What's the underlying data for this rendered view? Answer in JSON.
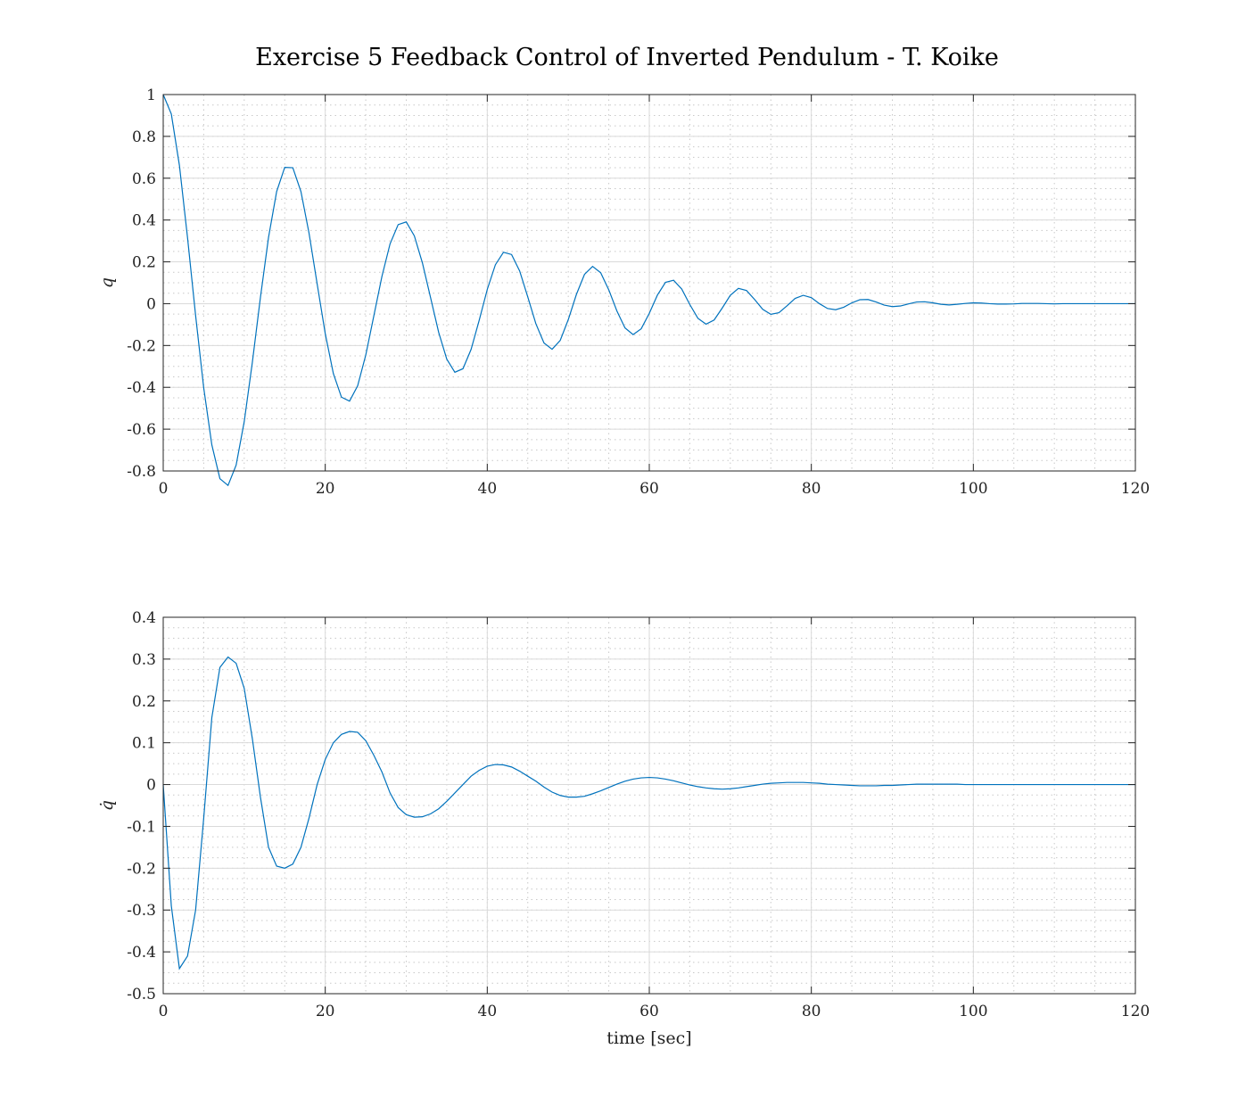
{
  "figure": {
    "title": "Exercise 5 Feedback Control of Inverted Pendulum - T. Koike"
  },
  "chart_data": [
    {
      "type": "line",
      "id": "q-plot",
      "title": "",
      "xlabel": "",
      "ylabel": "q",
      "xlim": [
        0,
        120
      ],
      "ylim": [
        -0.8,
        1
      ],
      "xticks": [
        0,
        20,
        40,
        60,
        80,
        100,
        120
      ],
      "xtick_labels": [
        "0",
        "20",
        "40",
        "60",
        "80",
        "100",
        "120"
      ],
      "yticks": [
        -0.8,
        -0.6,
        -0.4,
        -0.2,
        0,
        0.2,
        0.4,
        0.6,
        0.8,
        1
      ],
      "ytick_labels": [
        "-0.8",
        "-0.6",
        "-0.4",
        "-0.2",
        "0",
        "0.2",
        "0.4",
        "0.6",
        "0.8",
        "1"
      ],
      "grid": true,
      "minor_grid": true,
      "color": "#0072bd",
      "series": [
        {
          "x": [
            0,
            1,
            2,
            3,
            4,
            5,
            6,
            7,
            8,
            9,
            10,
            11,
            12,
            13,
            14,
            15,
            16,
            17,
            18,
            19,
            20,
            21,
            22,
            23,
            24,
            25,
            26,
            27,
            28,
            29,
            30,
            31,
            32,
            33,
            34,
            35,
            36,
            37,
            38,
            39,
            40,
            41,
            42,
            43,
            44,
            45,
            46,
            47,
            48,
            49,
            50,
            51,
            52,
            53,
            54,
            55,
            56,
            57,
            58,
            59,
            60,
            61,
            62,
            63,
            64,
            65,
            66,
            67,
            68,
            69,
            70,
            71,
            72,
            73,
            74,
            75,
            76,
            77,
            78,
            79,
            80,
            81,
            82,
            83,
            84,
            85,
            86,
            87,
            88,
            89,
            90,
            91,
            92,
            93,
            94,
            95,
            96,
            97,
            98,
            99,
            100,
            101,
            102,
            103,
            104,
            105,
            106,
            107,
            108,
            109,
            110,
            111,
            112,
            113,
            114,
            115,
            116,
            117,
            118,
            119,
            120
          ],
          "y": [
            1.0,
            0.907,
            0.661,
            0.316,
            -0.057,
            -0.403,
            -0.675,
            -0.837,
            -0.869,
            -0.772,
            -0.564,
            -0.281,
            0.03,
            0.317,
            0.536,
            0.652,
            0.65,
            0.536,
            0.337,
            0.095,
            -0.143,
            -0.334,
            -0.447,
            -0.466,
            -0.393,
            -0.246,
            -0.058,
            0.131,
            0.286,
            0.378,
            0.391,
            0.324,
            0.194,
            0.029,
            -0.137,
            -0.265,
            -0.328,
            -0.311,
            -0.219,
            -0.08,
            0.068,
            0.186,
            0.246,
            0.235,
            0.156,
            0.032,
            -0.096,
            -0.188,
            -0.218,
            -0.176,
            -0.076,
            0.044,
            0.14,
            0.178,
            0.148,
            0.066,
            -0.035,
            -0.116,
            -0.148,
            -0.12,
            -0.046,
            0.041,
            0.102,
            0.112,
            0.07,
            -0.004,
            -0.07,
            -0.098,
            -0.078,
            -0.021,
            0.04,
            0.073,
            0.063,
            0.02,
            -0.027,
            -0.051,
            -0.043,
            -0.01,
            0.025,
            0.04,
            0.029,
            0.0,
            -0.023,
            -0.029,
            -0.017,
            0.004,
            0.019,
            0.02,
            0.008,
            -0.007,
            -0.014,
            -0.011,
            -0.001,
            0.008,
            0.009,
            0.004,
            -0.003,
            -0.006,
            -0.003,
            0.001,
            0.004,
            0.003,
            0.0,
            -0.002,
            -0.002,
            -0.001,
            0.001,
            0.001,
            0.001,
            0.0,
            -0.001,
            0.0,
            0.0,
            0.0,
            0.0,
            0.0,
            0.0,
            0.0,
            0.0,
            0.0,
            0.0
          ]
        }
      ]
    },
    {
      "type": "line",
      "id": "qdot-plot",
      "title": "",
      "xlabel": "time [sec]",
      "ylabel": "q̇",
      "xlim": [
        0,
        120
      ],
      "ylim": [
        -0.5,
        0.4
      ],
      "xticks": [
        0,
        20,
        40,
        60,
        80,
        100,
        120
      ],
      "xtick_labels": [
        "0",
        "20",
        "40",
        "60",
        "80",
        "100",
        "120"
      ],
      "yticks": [
        -0.5,
        -0.4,
        -0.3,
        -0.2,
        -0.1,
        0,
        0.1,
        0.2,
        0.3,
        0.4
      ],
      "ytick_labels": [
        "-0.5",
        "-0.4",
        "-0.3",
        "-0.2",
        "-0.1",
        "0",
        "0.1",
        "0.2",
        "0.3",
        "0.4"
      ],
      "grid": true,
      "minor_grid": true,
      "color": "#0072bd",
      "series": [
        {
          "x": [
            0,
            1,
            2,
            3,
            4,
            5,
            6,
            7,
            8,
            9,
            10,
            11,
            12,
            13,
            14,
            15,
            16,
            17,
            18,
            19,
            20,
            21,
            22,
            23,
            24,
            25,
            26,
            27,
            28,
            29,
            30,
            31,
            32,
            33,
            34,
            35,
            36,
            37,
            38,
            39,
            40,
            41,
            42,
            43,
            44,
            45,
            46,
            47,
            48,
            49,
            50,
            51,
            52,
            53,
            54,
            55,
            56,
            57,
            58,
            59,
            60,
            61,
            62,
            63,
            64,
            65,
            66,
            67,
            68,
            69,
            70,
            71,
            72,
            73,
            74,
            75,
            76,
            77,
            78,
            79,
            80,
            81,
            82,
            83,
            84,
            85,
            86,
            87,
            88,
            89,
            90,
            91,
            92,
            93,
            94,
            95,
            96,
            97,
            98,
            99,
            100,
            101,
            102,
            103,
            104,
            105,
            106,
            107,
            108,
            109,
            110,
            111,
            112,
            113,
            114,
            115,
            116,
            117,
            118,
            119,
            120
          ],
          "y": [
            0.0,
            -0.29,
            -0.44,
            -0.41,
            -0.3,
            -0.08,
            0.16,
            0.28,
            0.305,
            0.29,
            0.23,
            0.11,
            -0.03,
            -0.15,
            -0.195,
            -0.2,
            -0.19,
            -0.15,
            -0.08,
            0.0,
            0.06,
            0.1,
            0.12,
            0.127,
            0.125,
            0.105,
            0.07,
            0.03,
            -0.02,
            -0.055,
            -0.072,
            -0.078,
            -0.077,
            -0.07,
            -0.058,
            -0.04,
            -0.02,
            0.0,
            0.02,
            0.034,
            0.044,
            0.048,
            0.047,
            0.042,
            0.032,
            0.02,
            0.008,
            -0.006,
            -0.018,
            -0.026,
            -0.03,
            -0.03,
            -0.028,
            -0.022,
            -0.015,
            -0.007,
            0.001,
            0.008,
            0.013,
            0.016,
            0.017,
            0.016,
            0.013,
            0.009,
            0.004,
            -0.001,
            -0.005,
            -0.008,
            -0.01,
            -0.011,
            -0.01,
            -0.008,
            -0.005,
            -0.002,
            0.001,
            0.003,
            0.004,
            0.005,
            0.005,
            0.005,
            0.004,
            0.003,
            0.001,
            0.0,
            -0.001,
            -0.002,
            -0.003,
            -0.003,
            -0.003,
            -0.002,
            -0.002,
            -0.001,
            0.0,
            0.001,
            0.001,
            0.001,
            0.001,
            0.001,
            0.001,
            0.0,
            0.0,
            0.0,
            0.0,
            0.0,
            0.0,
            0.0,
            0.0,
            0.0,
            0.0,
            0.0,
            0.0,
            0.0,
            0.0,
            0.0,
            0.0,
            0.0,
            0.0,
            0.0,
            0.0,
            0.0,
            0.0
          ]
        }
      ]
    }
  ]
}
